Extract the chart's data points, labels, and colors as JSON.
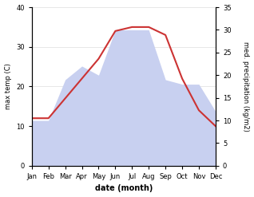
{
  "months": [
    "Jan",
    "Feb",
    "Mar",
    "Apr",
    "May",
    "Jun",
    "Jul",
    "Aug",
    "Sep",
    "Oct",
    "Nov",
    "Dec"
  ],
  "temp": [
    12,
    12,
    17,
    22,
    27,
    34,
    35,
    35,
    33,
    22,
    14,
    10
  ],
  "precip": [
    10,
    10,
    19,
    22,
    20,
    30,
    30,
    30,
    19,
    18,
    18,
    12
  ],
  "temp_color": "#cc3333",
  "precip_fill_color": "#c8d0f0",
  "temp_ylim": [
    0,
    40
  ],
  "precip_ylim": [
    0,
    35
  ],
  "xlabel": "date (month)",
  "ylabel_left": "max temp (C)",
  "ylabel_right": "med. precipitation (kg/m2)",
  "bg_color": "#ffffff",
  "grid_color": "#dddddd",
  "right_yticks": [
    0,
    5,
    10,
    15,
    20,
    25,
    30,
    35
  ],
  "left_yticks": [
    0,
    10,
    20,
    30,
    40
  ]
}
